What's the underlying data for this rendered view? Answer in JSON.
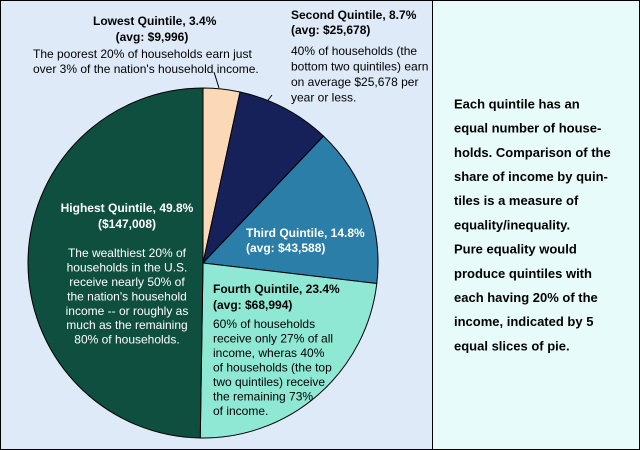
{
  "chart_data": {
    "type": "pie",
    "labels": [
      "Lowest Quintile, 3.4%",
      "Second Quintile, 8.7%",
      "Third Quintile, 14.8%",
      "Fourth Quintile, 23.4%",
      "Highest Quintile, 49.8%"
    ],
    "values": [
      3.4,
      8.7,
      14.8,
      23.4,
      49.8
    ],
    "colors": [
      "#fcd9b6",
      "#16215a",
      "#2a7ea8",
      "#8ee8d3",
      "#0f4f40"
    ],
    "averages": [
      "(avg: $9,996)",
      "(avg: $25,678)",
      "(avg: $43,588)",
      "(avg: $68,994)",
      "($147,008)"
    ],
    "descriptions": [
      [
        "The poorest 20% of households earn just",
        "over 3% of the nation's household income."
      ],
      [
        "40% of households (the",
        "bottom two quintiles) earn",
        "on average $25,678 per",
        "year or less."
      ],
      [],
      [
        "60% of households",
        "receive only 27% of all",
        "income, wheras 40%",
        "of households (the top",
        "two quintiles) receive",
        "the remaining 73%",
        "of income."
      ],
      [
        "The wealthiest 20% of",
        "households in the U.S.",
        "receive  nearly 50% of",
        "the nation's household",
        "income -- or roughly as",
        "much as the remaining",
        "80% of households."
      ]
    ]
  },
  "sidebar": {
    "lines": [
      "Each quintile has an",
      "equal number of house-",
      "holds. Comparison of the",
      "share of income by quin-",
      "tiles is a measure of",
      "equality/inequality.",
      "Pure equality would",
      "produce quintiles with",
      "each having 20% of the",
      "income, indicated by 5",
      "equal slices of pie."
    ]
  }
}
